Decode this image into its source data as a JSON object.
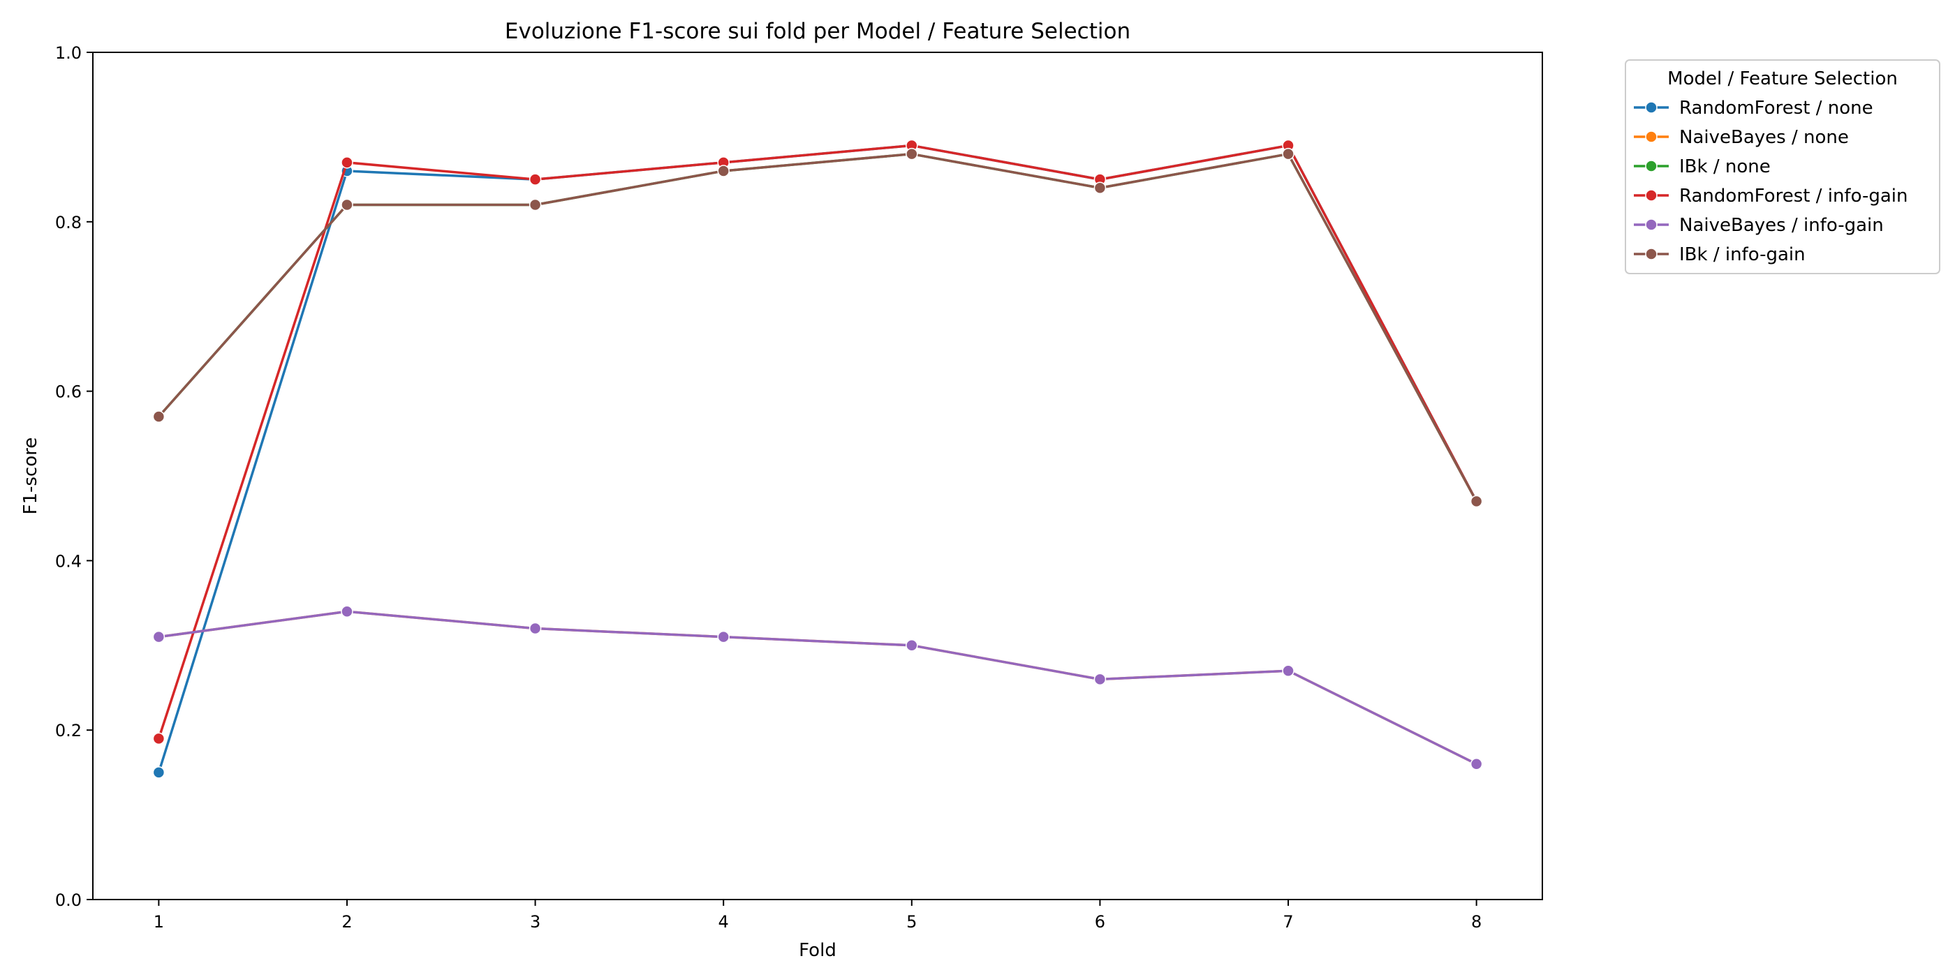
{
  "chart_data": {
    "type": "line",
    "title": "Evoluzione F1-score sui fold per Model / Feature Selection",
    "xlabel": "Fold",
    "ylabel": "F1-score",
    "x": [
      1,
      2,
      3,
      4,
      5,
      6,
      7,
      8
    ],
    "xticks": [
      "1",
      "2",
      "3",
      "4",
      "5",
      "6",
      "7",
      "8"
    ],
    "xlim": [
      0.65,
      8.35
    ],
    "ylim": [
      0.0,
      1.0
    ],
    "yticks": [
      "0.0",
      "0.2",
      "0.4",
      "0.6",
      "0.8",
      "1.0"
    ],
    "grid": false,
    "legend": {
      "title": "Model / Feature Selection",
      "placement": "outside-top-right"
    },
    "series": [
      {
        "name": "RandomForest / none",
        "color": "#1f77b4",
        "values": [
          0.15,
          0.86,
          0.85,
          0.87,
          0.89,
          0.85,
          0.89,
          0.47
        ]
      },
      {
        "name": "NaiveBayes / none",
        "color": "#ff7f0e",
        "values": [
          0.31,
          0.34,
          0.32,
          0.31,
          0.3,
          0.26,
          0.27,
          0.16
        ]
      },
      {
        "name": "IBk / none",
        "color": "#2ca02c",
        "values": [
          0.57,
          0.82,
          0.82,
          0.86,
          0.88,
          0.84,
          0.88,
          0.47
        ]
      },
      {
        "name": "RandomForest / info-gain",
        "color": "#d62728",
        "values": [
          0.19,
          0.87,
          0.85,
          0.87,
          0.89,
          0.85,
          0.89,
          0.47
        ]
      },
      {
        "name": "NaiveBayes / info-gain",
        "color": "#9467bd",
        "values": [
          0.31,
          0.34,
          0.32,
          0.31,
          0.3,
          0.26,
          0.27,
          0.16
        ]
      },
      {
        "name": "IBk / info-gain",
        "color": "#8c564b",
        "values": [
          0.57,
          0.82,
          0.82,
          0.86,
          0.88,
          0.84,
          0.88,
          0.47
        ]
      }
    ]
  }
}
